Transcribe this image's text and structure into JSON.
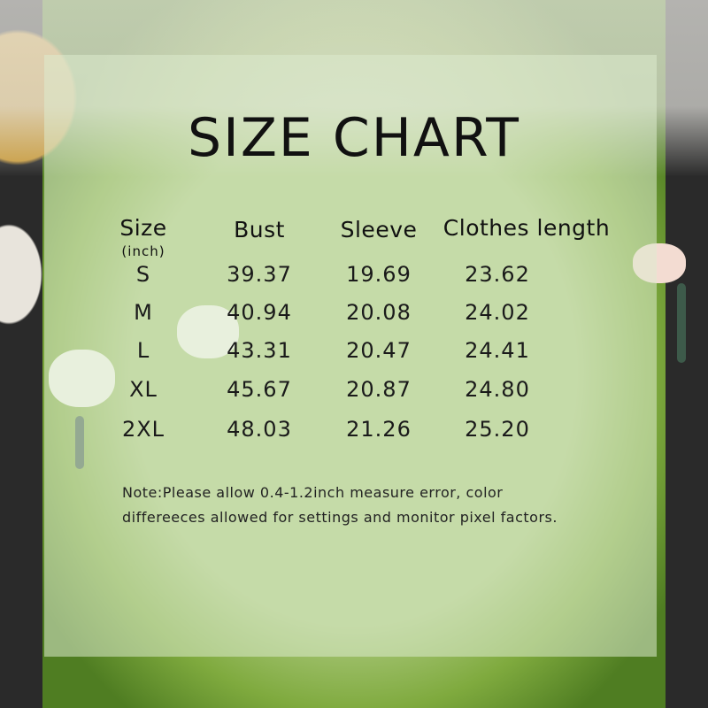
{
  "title": "SIZE CHART",
  "table": {
    "headers": [
      "Size",
      "Bust",
      "Sleeve",
      "Clothes length"
    ],
    "size_unit": "(inch)",
    "rows": [
      [
        "S",
        "39.37",
        "19.69",
        "23.62"
      ],
      [
        "M",
        "40.94",
        "20.08",
        "24.02"
      ],
      [
        "L",
        "43.31",
        "20.47",
        "24.41"
      ],
      [
        "XL",
        "45.67",
        "20.87",
        "24.80"
      ],
      [
        "2XL",
        "48.03",
        "21.26",
        "25.20"
      ]
    ]
  },
  "note": {
    "line1": "Note:Please allow 0.4-1.2inch measure error, color",
    "line2": "differeeces allowed for settings and monitor pixel factors."
  },
  "colors": {
    "sweater": "#8fb858",
    "overlay": "#dcebcd"
  }
}
